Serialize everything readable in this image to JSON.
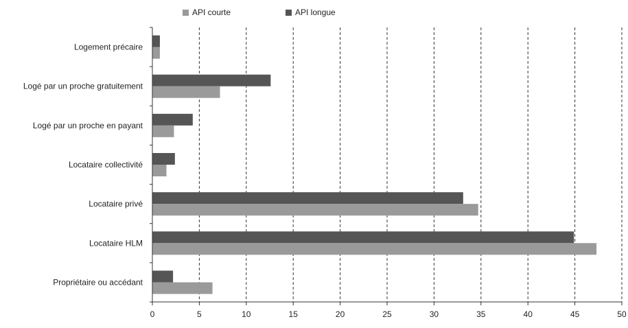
{
  "chart_data": {
    "type": "bar",
    "orientation": "horizontal",
    "categories": [
      "Logement précaire",
      "Logé par un proche gratuitement",
      "Logé par un proche en payant",
      "Locataire collectivité",
      "Locataire privé",
      "Locataire HLM",
      "Propriétaire ou accédant"
    ],
    "series": [
      {
        "name": "API longue",
        "color": "#555555",
        "values": [
          0.8,
          12.6,
          4.3,
          2.4,
          33.1,
          44.9,
          2.2
        ]
      },
      {
        "name": "API courte",
        "color": "#9a9a9a",
        "values": [
          0.8,
          7.2,
          2.3,
          1.5,
          34.7,
          47.3,
          6.4
        ]
      }
    ],
    "xlim": [
      0,
      50
    ],
    "xticks": [
      0,
      5,
      10,
      15,
      20,
      25,
      30,
      35,
      40,
      45,
      50
    ],
    "grid": "vertical-dashed",
    "legend_position": "top"
  },
  "legend": {
    "items": [
      {
        "label": "API courte",
        "color": "#9a9a9a"
      },
      {
        "label": "API longue",
        "color": "#555555"
      }
    ]
  }
}
